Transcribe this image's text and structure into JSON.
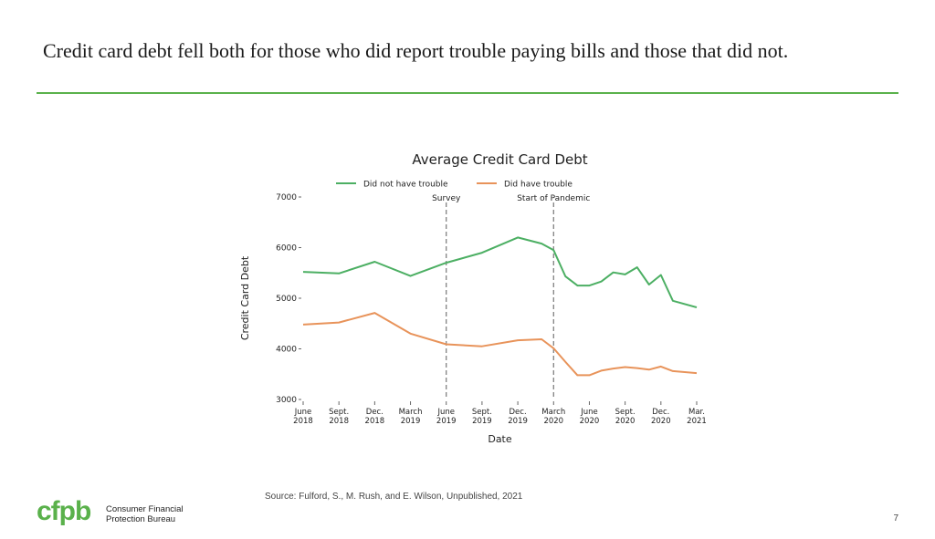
{
  "slide": {
    "title": "Credit card debt fell both for those who did report trouble paying bills and those that did not.",
    "source": "Source: Fulford, S., M. Rush, and E. Wilson, Unpublished, 2021",
    "page_number": "7",
    "logo": {
      "mark": "cfpb",
      "line1": "Consumer Financial",
      "line2": "Protection Bureau"
    },
    "colors": {
      "accent": "#5ab14b"
    }
  },
  "chart_data": {
    "type": "line",
    "title": "Average Credit Card Debt",
    "xlabel": "Date",
    "ylabel": "Credit Card Debt",
    "ylim": [
      3000,
      7000
    ],
    "yticks": [
      3000,
      4000,
      5000,
      6000,
      7000
    ],
    "xlim": [
      0,
      33
    ],
    "xticks": [
      {
        "x": 0,
        "line1": "June",
        "line2": "2018"
      },
      {
        "x": 3,
        "line1": "Sept.",
        "line2": "2018"
      },
      {
        "x": 6,
        "line1": "Dec.",
        "line2": "2018"
      },
      {
        "x": 9,
        "line1": "March",
        "line2": "2019"
      },
      {
        "x": 12,
        "line1": "June",
        "line2": "2019"
      },
      {
        "x": 15,
        "line1": "Sept.",
        "line2": "2019"
      },
      {
        "x": 18,
        "line1": "Dec.",
        "line2": "2019"
      },
      {
        "x": 21,
        "line1": "March",
        "line2": "2020"
      },
      {
        "x": 24,
        "line1": "June",
        "line2": "2020"
      },
      {
        "x": 27,
        "line1": "Sept.",
        "line2": "2020"
      },
      {
        "x": 30,
        "line1": "Dec.",
        "line2": "2020"
      },
      {
        "x": 33,
        "line1": "Mar.",
        "line2": "2021"
      }
    ],
    "vlines": [
      {
        "x": 12,
        "label": "Survey"
      },
      {
        "x": 21,
        "label": "Start of Pandemic"
      }
    ],
    "legend_position": "top-center",
    "series": [
      {
        "name": "Did not have trouble",
        "color": "#4caf63",
        "points": [
          [
            0,
            5520
          ],
          [
            3,
            5490
          ],
          [
            6,
            5720
          ],
          [
            9,
            5440
          ],
          [
            12,
            5700
          ],
          [
            15,
            5900
          ],
          [
            18,
            6200
          ],
          [
            20,
            6080
          ],
          [
            21,
            5950
          ],
          [
            22,
            5430
          ],
          [
            23,
            5250
          ],
          [
            24,
            5250
          ],
          [
            25,
            5330
          ],
          [
            26,
            5510
          ],
          [
            27,
            5470
          ],
          [
            28,
            5610
          ],
          [
            29,
            5270
          ],
          [
            30,
            5460
          ],
          [
            31,
            4950
          ],
          [
            33,
            4820
          ]
        ]
      },
      {
        "name": "Did have trouble",
        "color": "#e8935a",
        "points": [
          [
            0,
            4480
          ],
          [
            3,
            4520
          ],
          [
            6,
            4710
          ],
          [
            9,
            4300
          ],
          [
            12,
            4090
          ],
          [
            15,
            4050
          ],
          [
            18,
            4170
          ],
          [
            20,
            4190
          ],
          [
            21,
            4010
          ],
          [
            22,
            3740
          ],
          [
            23,
            3480
          ],
          [
            24,
            3480
          ],
          [
            25,
            3570
          ],
          [
            26,
            3610
          ],
          [
            27,
            3640
          ],
          [
            28,
            3620
          ],
          [
            29,
            3590
          ],
          [
            30,
            3650
          ],
          [
            31,
            3560
          ],
          [
            33,
            3520
          ]
        ]
      }
    ]
  }
}
